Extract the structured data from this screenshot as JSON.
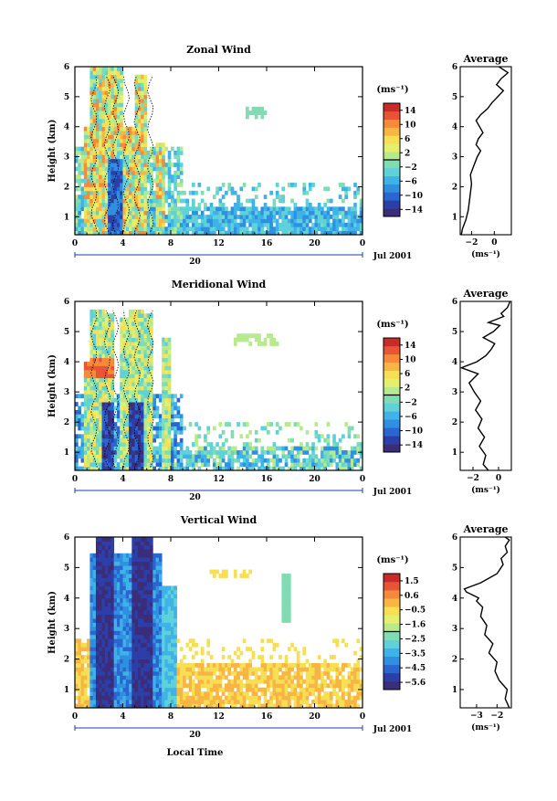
{
  "panels": [
    {
      "id": "zonal",
      "title": "Zonal Wind",
      "ylabel": "Height (km)",
      "yticks": [
        "1",
        "2",
        "3",
        "4",
        "5",
        "6"
      ],
      "xticks": [
        "0",
        "4",
        "8",
        "12",
        "16",
        "20",
        "0"
      ],
      "date_marker": "20",
      "date_label": "Jul 2001",
      "xlabel": "",
      "unit": "(ms⁻¹)",
      "colorbar_ticks": [
        "14",
        "10",
        "6",
        "2",
        "−2",
        "−6",
        "−10",
        "−14"
      ],
      "avg_title": "Average",
      "avg_xticks": [
        "−2",
        "0"
      ],
      "avg_xlabel": "(ms⁻¹)"
    },
    {
      "id": "meridional",
      "title": "Meridional Wind",
      "ylabel": "Height (km)",
      "yticks": [
        "1",
        "2",
        "3",
        "4",
        "5",
        "6"
      ],
      "xticks": [
        "0",
        "4",
        "8",
        "12",
        "16",
        "20",
        "0"
      ],
      "date_marker": "20",
      "date_label": "Jul 2001",
      "xlabel": "",
      "unit": "(ms⁻¹)",
      "colorbar_ticks": [
        "14",
        "10",
        "6",
        "2",
        "−2",
        "−6",
        "−10",
        "−14"
      ],
      "avg_title": "Average",
      "avg_xticks": [
        "−2",
        "0"
      ],
      "avg_xlabel": "(ms⁻¹)"
    },
    {
      "id": "vertical",
      "title": "Vertical Wind",
      "ylabel": "Height (km)",
      "yticks": [
        "1",
        "2",
        "3",
        "4",
        "5",
        "6"
      ],
      "xticks": [
        "0",
        "4",
        "8",
        "12",
        "16",
        "20",
        "0"
      ],
      "date_marker": "20",
      "date_label": "Jul 2001",
      "xlabel": "Local Time",
      "unit": "(ms⁻¹)",
      "colorbar_ticks": [
        "1.5",
        "0.6",
        "−0.5",
        "−1.6",
        "−2.5",
        "−3.5",
        "−4.5",
        "−5.6"
      ],
      "avg_title": "Average",
      "avg_xticks": [
        "−3",
        "−2"
      ],
      "avg_xlabel": "(ms⁻¹)"
    }
  ],
  "colors": {
    "scale": [
      "#3b2d7a",
      "#2c3fa8",
      "#2a66cf",
      "#2f8fe0",
      "#3fb3e8",
      "#5ed1d9",
      "#7fdcb3",
      "#b7ea8c",
      "#e3ef6d",
      "#f7df55",
      "#f9b544",
      "#f58a3a",
      "#e75535",
      "#c92a2a"
    ],
    "axis": "#000000",
    "timebar": "#1a3fb0"
  },
  "chart_data": [
    {
      "type": "heatmap",
      "title": "Zonal Wind",
      "xlabel": "",
      "ylabel": "Height (km)",
      "xlim_hours": [
        0,
        24
      ],
      "ylim_km": [
        0.4,
        6
      ],
      "x_ticks": [
        "0",
        "4",
        "8",
        "12",
        "16",
        "20",
        "0"
      ],
      "colorbar_range": [
        -14,
        14
      ],
      "colorbar_unit": "ms-1",
      "average_profile": {
        "x": [
          -2.9,
          -2.8,
          -2.5,
          -2.3,
          -2.2,
          -2.1,
          -2.0,
          -2.1,
          -1.8,
          -1.5,
          -1.2,
          -1.6,
          -1.4,
          -1.0,
          -1.3,
          -1.6,
          -1.2,
          -0.6,
          -0.2,
          0.3,
          0.8,
          0.2,
          0.6,
          1.2,
          0.4
        ],
        "height_km": [
          0.4,
          0.6,
          0.9,
          1.2,
          1.5,
          1.8,
          2.1,
          2.4,
          2.7,
          3.0,
          3.2,
          3.4,
          3.6,
          3.8,
          4.0,
          4.2,
          4.4,
          4.6,
          4.8,
          5.0,
          5.2,
          5.4,
          5.6,
          5.8,
          6.0
        ],
        "xlim": [
          -3,
          1.5
        ]
      }
    },
    {
      "type": "heatmap",
      "title": "Meridional Wind",
      "xlabel": "",
      "ylabel": "Height (km)",
      "xlim_hours": [
        0,
        24
      ],
      "ylim_km": [
        0.4,
        6
      ],
      "x_ticks": [
        "0",
        "4",
        "8",
        "12",
        "16",
        "20",
        "0"
      ],
      "colorbar_range": [
        -14,
        14
      ],
      "colorbar_unit": "ms-1",
      "average_profile": {
        "x": [
          -0.8,
          -1.2,
          -1.0,
          -1.5,
          -1.1,
          -1.6,
          -1.3,
          -1.8,
          -1.4,
          -1.9,
          -2.3,
          -1.6,
          -2.9,
          -1.7,
          -1.0,
          -0.6,
          -0.3,
          -1.2,
          -0.4,
          0.1,
          -0.8,
          0.4,
          0.2,
          0.7,
          0.9
        ],
        "height_km": [
          0.4,
          0.6,
          0.9,
          1.2,
          1.5,
          1.8,
          2.1,
          2.4,
          2.7,
          3.0,
          3.3,
          3.6,
          3.8,
          4.0,
          4.2,
          4.4,
          4.6,
          4.8,
          5.0,
          5.2,
          5.3,
          5.5,
          5.6,
          5.8,
          6.0
        ],
        "xlim": [
          -3,
          1
        ]
      }
    },
    {
      "type": "heatmap",
      "title": "Vertical Wind",
      "xlabel": "Local Time",
      "ylabel": "Height (km)",
      "xlim_hours": [
        0,
        24
      ],
      "ylim_km": [
        0.4,
        6
      ],
      "x_ticks": [
        "0",
        "4",
        "8",
        "12",
        "16",
        "20",
        "0"
      ],
      "colorbar_range": [
        -5.6,
        1.5
      ],
      "colorbar_unit": "ms-1",
      "average_profile": {
        "x": [
          -1.4,
          -1.6,
          -1.5,
          -1.9,
          -2.1,
          -2.0,
          -2.4,
          -2.2,
          -2.6,
          -2.5,
          -2.8,
          -2.7,
          -3.0,
          -2.9,
          -3.2,
          -3.5,
          -3.6,
          -2.8,
          -2.0,
          -1.7,
          -1.8,
          -1.5,
          -1.6,
          -1.4,
          -1.6
        ],
        "height_km": [
          0.4,
          0.7,
          1.0,
          1.3,
          1.6,
          1.9,
          2.2,
          2.5,
          2.8,
          3.1,
          3.4,
          3.7,
          3.9,
          4.0,
          4.1,
          4.2,
          4.3,
          4.5,
          4.8,
          5.1,
          5.3,
          5.5,
          5.7,
          5.9,
          6.0
        ],
        "xlim": [
          -3.8,
          -1.3
        ]
      }
    }
  ]
}
